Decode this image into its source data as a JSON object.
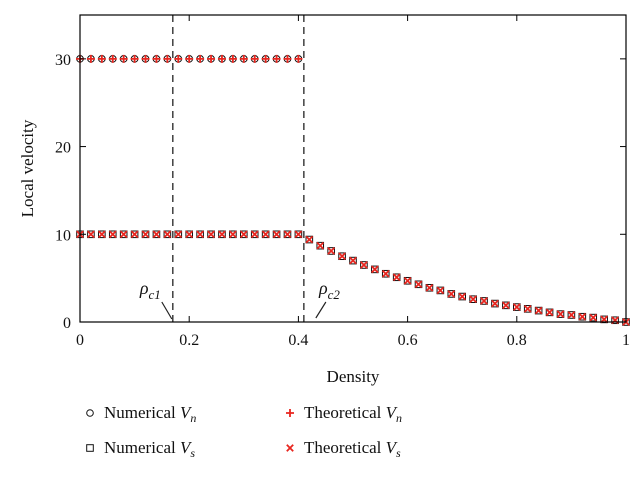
{
  "chart_data": {
    "type": "scatter",
    "title": "",
    "xlabel": "Density",
    "ylabel": "Local velocity",
    "xlim": [
      0,
      1
    ],
    "ylim": [
      0,
      35
    ],
    "xticks": [
      0,
      0.2,
      0.4,
      0.6,
      0.8,
      1
    ],
    "xtick_labels": [
      "0",
      "0.2",
      "0.4",
      "0.6",
      "0.8",
      "1"
    ],
    "yticks": [
      0,
      10,
      20,
      30
    ],
    "ytick_labels": [
      "0",
      "10",
      "20",
      "30"
    ],
    "legend_position": "bottom",
    "annotations": [
      {
        "name": "rho-c1",
        "symbol": "ρ",
        "subscript": "c1",
        "x": 0.17
      },
      {
        "name": "rho-c2",
        "symbol": "ρ",
        "subscript": "c2",
        "x": 0.41
      }
    ],
    "colors": {
      "numerical": "#111111",
      "theoretical": "#e8261f",
      "dashed": "#222222",
      "axis": "#000000"
    },
    "series": [
      {
        "name": "Numerical Vn",
        "label": "Numerical ",
        "var": "V",
        "sub": "n",
        "marker": "circle",
        "points": [
          [
            0.0,
            30
          ],
          [
            0.02,
            30
          ],
          [
            0.04,
            30
          ],
          [
            0.06,
            30
          ],
          [
            0.08,
            30
          ],
          [
            0.1,
            30
          ],
          [
            0.12,
            30
          ],
          [
            0.14,
            30
          ],
          [
            0.16,
            30
          ],
          [
            0.18,
            30
          ],
          [
            0.2,
            30
          ],
          [
            0.22,
            30
          ],
          [
            0.24,
            30
          ],
          [
            0.26,
            30
          ],
          [
            0.28,
            30
          ],
          [
            0.3,
            30
          ],
          [
            0.32,
            30
          ],
          [
            0.34,
            30
          ],
          [
            0.36,
            30
          ],
          [
            0.38,
            30
          ],
          [
            0.4,
            30
          ]
        ]
      },
      {
        "name": "Numerical Vs",
        "label": "Numerical ",
        "var": "V",
        "sub": "s",
        "marker": "square",
        "points": [
          [
            0.0,
            10.0
          ],
          [
            0.02,
            10.0
          ],
          [
            0.04,
            10.0
          ],
          [
            0.06,
            10.0
          ],
          [
            0.08,
            10.0
          ],
          [
            0.1,
            10.0
          ],
          [
            0.12,
            10.0
          ],
          [
            0.14,
            10.0
          ],
          [
            0.16,
            10.0
          ],
          [
            0.18,
            10.0
          ],
          [
            0.2,
            10.0
          ],
          [
            0.22,
            10.0
          ],
          [
            0.24,
            10.0
          ],
          [
            0.26,
            10.0
          ],
          [
            0.28,
            10.0
          ],
          [
            0.3,
            10.0
          ],
          [
            0.32,
            10.0
          ],
          [
            0.34,
            10.0
          ],
          [
            0.36,
            10.0
          ],
          [
            0.38,
            10.0
          ],
          [
            0.4,
            10.0
          ],
          [
            0.42,
            9.4
          ],
          [
            0.44,
            8.7
          ],
          [
            0.46,
            8.1
          ],
          [
            0.48,
            7.5
          ],
          [
            0.5,
            7.0
          ],
          [
            0.52,
            6.5
          ],
          [
            0.54,
            6.0
          ],
          [
            0.56,
            5.5
          ],
          [
            0.58,
            5.1
          ],
          [
            0.6,
            4.7
          ],
          [
            0.62,
            4.3
          ],
          [
            0.64,
            3.9
          ],
          [
            0.66,
            3.6
          ],
          [
            0.68,
            3.2
          ],
          [
            0.7,
            2.9
          ],
          [
            0.72,
            2.6
          ],
          [
            0.74,
            2.4
          ],
          [
            0.76,
            2.1
          ],
          [
            0.78,
            1.9
          ],
          [
            0.8,
            1.7
          ],
          [
            0.82,
            1.5
          ],
          [
            0.84,
            1.3
          ],
          [
            0.86,
            1.1
          ],
          [
            0.88,
            0.9
          ],
          [
            0.9,
            0.8
          ],
          [
            0.92,
            0.6
          ],
          [
            0.94,
            0.5
          ],
          [
            0.96,
            0.3
          ],
          [
            0.98,
            0.2
          ],
          [
            1.0,
            0.0
          ]
        ]
      },
      {
        "name": "Theoretical Vn",
        "label": "Theoretical ",
        "var": "V",
        "sub": "n",
        "marker": "plus",
        "points": [
          [
            0.0,
            30
          ],
          [
            0.02,
            30
          ],
          [
            0.04,
            30
          ],
          [
            0.06,
            30
          ],
          [
            0.08,
            30
          ],
          [
            0.1,
            30
          ],
          [
            0.12,
            30
          ],
          [
            0.14,
            30
          ],
          [
            0.16,
            30
          ],
          [
            0.18,
            30
          ],
          [
            0.2,
            30
          ],
          [
            0.22,
            30
          ],
          [
            0.24,
            30
          ],
          [
            0.26,
            30
          ],
          [
            0.28,
            30
          ],
          [
            0.3,
            30
          ],
          [
            0.32,
            30
          ],
          [
            0.34,
            30
          ],
          [
            0.36,
            30
          ],
          [
            0.38,
            30
          ],
          [
            0.4,
            30
          ]
        ]
      },
      {
        "name": "Theoretical Vs",
        "label": "Theoretical ",
        "var": "V",
        "sub": "s",
        "marker": "cross",
        "points": [
          [
            0.0,
            10.0
          ],
          [
            0.02,
            10.0
          ],
          [
            0.04,
            10.0
          ],
          [
            0.06,
            10.0
          ],
          [
            0.08,
            10.0
          ],
          [
            0.1,
            10.0
          ],
          [
            0.12,
            10.0
          ],
          [
            0.14,
            10.0
          ],
          [
            0.16,
            10.0
          ],
          [
            0.18,
            10.0
          ],
          [
            0.2,
            10.0
          ],
          [
            0.22,
            10.0
          ],
          [
            0.24,
            10.0
          ],
          [
            0.26,
            10.0
          ],
          [
            0.28,
            10.0
          ],
          [
            0.3,
            10.0
          ],
          [
            0.32,
            10.0
          ],
          [
            0.34,
            10.0
          ],
          [
            0.36,
            10.0
          ],
          [
            0.38,
            10.0
          ],
          [
            0.4,
            10.0
          ],
          [
            0.42,
            9.4
          ],
          [
            0.44,
            8.7
          ],
          [
            0.46,
            8.1
          ],
          [
            0.48,
            7.5
          ],
          [
            0.5,
            7.0
          ],
          [
            0.52,
            6.5
          ],
          [
            0.54,
            6.0
          ],
          [
            0.56,
            5.5
          ],
          [
            0.58,
            5.1
          ],
          [
            0.6,
            4.7
          ],
          [
            0.62,
            4.3
          ],
          [
            0.64,
            3.9
          ],
          [
            0.66,
            3.6
          ],
          [
            0.68,
            3.2
          ],
          [
            0.7,
            2.9
          ],
          [
            0.72,
            2.6
          ],
          [
            0.74,
            2.4
          ],
          [
            0.76,
            2.1
          ],
          [
            0.78,
            1.9
          ],
          [
            0.8,
            1.7
          ],
          [
            0.82,
            1.5
          ],
          [
            0.84,
            1.3
          ],
          [
            0.86,
            1.1
          ],
          [
            0.88,
            0.9
          ],
          [
            0.9,
            0.8
          ],
          [
            0.92,
            0.6
          ],
          [
            0.94,
            0.5
          ],
          [
            0.96,
            0.3
          ],
          [
            0.98,
            0.2
          ],
          [
            1.0,
            0.0
          ]
        ]
      }
    ]
  }
}
